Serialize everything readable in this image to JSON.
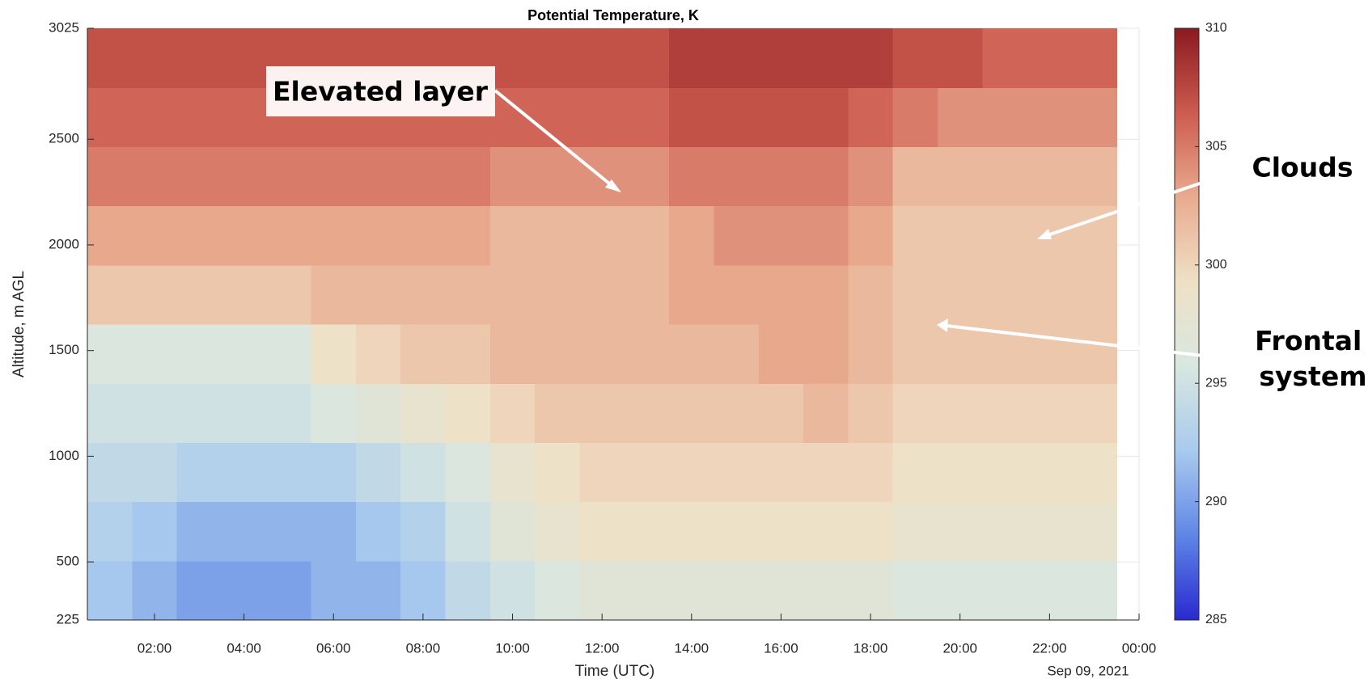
{
  "chart_data": {
    "type": "heatmap",
    "title": "Potential Temperature, K",
    "x_label": "Time (UTC)",
    "y_label": "Altitude, m AGL",
    "date_label": "Sep 09, 2021",
    "x": [
      1,
      2,
      3,
      4,
      5,
      6,
      7,
      8,
      9,
      10,
      11,
      12,
      13,
      14,
      15,
      16,
      17,
      18,
      19,
      20,
      21,
      22,
      23
    ],
    "y": [
      365,
      645,
      925,
      1205,
      1485,
      1765,
      2045,
      2325,
      2605,
      2885
    ],
    "z": [
      [
        292,
        291,
        290,
        290,
        290,
        291,
        291,
        292,
        294,
        295,
        296,
        297,
        297,
        297,
        297,
        297,
        297,
        297,
        296,
        296,
        296,
        296,
        296
      ],
      [
        293,
        292,
        291,
        291,
        291,
        291,
        292,
        293,
        295,
        297,
        298,
        299,
        299,
        299,
        299,
        299,
        299,
        299,
        298,
        298,
        298,
        298,
        298
      ],
      [
        294,
        294,
        293,
        293,
        293,
        293,
        294,
        295,
        296,
        298,
        299,
        300,
        300,
        300,
        300,
        300,
        300,
        300,
        299,
        299,
        299,
        299,
        299
      ],
      [
        295,
        295,
        295,
        295,
        295,
        296,
        297,
        298,
        299,
        300,
        301,
        301,
        301,
        301,
        301,
        301,
        302,
        301,
        300,
        300,
        300,
        300,
        300
      ],
      [
        296,
        296,
        296,
        296,
        296,
        299,
        300,
        301,
        301,
        302,
        302,
        302,
        302,
        302,
        302,
        303,
        303,
        302,
        301,
        301,
        301,
        301,
        301
      ],
      [
        301,
        301,
        301,
        301,
        301,
        302,
        302,
        302,
        302,
        302,
        302,
        302,
        302,
        303,
        303,
        303,
        303,
        302,
        301,
        301,
        301,
        301,
        301
      ],
      [
        303,
        303,
        303,
        303,
        303,
        303,
        303,
        303,
        303,
        302,
        302,
        302,
        302,
        303,
        304,
        304,
        304,
        303,
        301,
        301,
        301,
        301,
        301
      ],
      [
        305,
        305,
        305,
        305,
        305,
        305,
        305,
        305,
        305,
        304,
        304,
        304,
        304,
        305,
        305,
        305,
        305,
        304,
        302,
        302,
        302,
        302,
        302
      ],
      [
        306,
        306,
        306,
        306,
        306,
        306,
        306,
        306,
        306,
        306,
        306,
        306,
        306,
        307,
        307,
        307,
        307,
        306,
        305,
        304,
        304,
        304,
        304
      ],
      [
        307,
        307,
        307,
        307,
        307,
        307,
        307,
        307,
        307,
        307,
        307,
        307,
        307,
        308,
        308,
        308,
        308,
        308,
        307,
        307,
        306,
        306,
        306
      ]
    ],
    "xlim": [
      0.5,
      24
    ],
    "xticks": [
      {
        "value": 2,
        "label": "02:00"
      },
      {
        "value": 4,
        "label": "04:00"
      },
      {
        "value": 6,
        "label": "06:00"
      },
      {
        "value": 8,
        "label": "08:00"
      },
      {
        "value": 10,
        "label": "10:00"
      },
      {
        "value": 12,
        "label": "12:00"
      },
      {
        "value": 14,
        "label": "14:00"
      },
      {
        "value": 16,
        "label": "16:00"
      },
      {
        "value": 18,
        "label": "18:00"
      },
      {
        "value": 20,
        "label": "20:00"
      },
      {
        "value": 22,
        "label": "22:00"
      },
      {
        "value": 24,
        "label": "00:00"
      }
    ],
    "ylim": [
      225,
      3025
    ],
    "yticks": [
      225,
      500,
      1000,
      1500,
      2000,
      2500,
      3025
    ],
    "clim": [
      285,
      310
    ],
    "cticks": [
      285,
      290,
      295,
      300,
      305,
      310
    ],
    "colormap": [
      "#2a2ad0",
      "#5f86e6",
      "#a9caee",
      "#d8e7e0",
      "#efe0c6",
      "#e9ab8f",
      "#cd5b4f",
      "#8a1a20"
    ],
    "grid": true,
    "annotations": [
      "Elevated layer",
      "Clouds",
      [
        "Frontal",
        "system"
      ]
    ]
  }
}
